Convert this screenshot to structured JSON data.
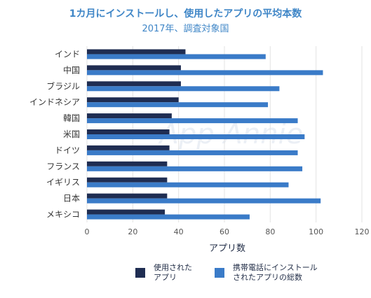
{
  "chart_data": {
    "type": "bar",
    "orientation": "horizontal",
    "title": "1カ月にインストールし、使用したアプリの平均本数",
    "subtitle": "2017年、調査対象国",
    "xlabel": "アプリ数",
    "xlim": [
      0,
      120
    ],
    "xticks": [
      0,
      20,
      40,
      60,
      80,
      100,
      120
    ],
    "grid": true,
    "legend_position": "bottom",
    "watermark": "App Annie",
    "categories": [
      "インド",
      "中国",
      "ブラジル",
      "インドネシア",
      "韓国",
      "米国",
      "ドイツ",
      "フランス",
      "イギリス",
      "日本",
      "メキシコ"
    ],
    "series": [
      {
        "name": "使用された\nアプリ",
        "color": "#1f2d52",
        "values": [
          43,
          41,
          41,
          40,
          37,
          36,
          36,
          35,
          35,
          35,
          34
        ]
      },
      {
        "name": "携帯電話にインストール\nされたアプリの総数",
        "color": "#3a7bc8",
        "values": [
          78,
          103,
          84,
          79,
          92,
          95,
          92,
          94,
          88,
          102,
          71
        ]
      }
    ]
  }
}
